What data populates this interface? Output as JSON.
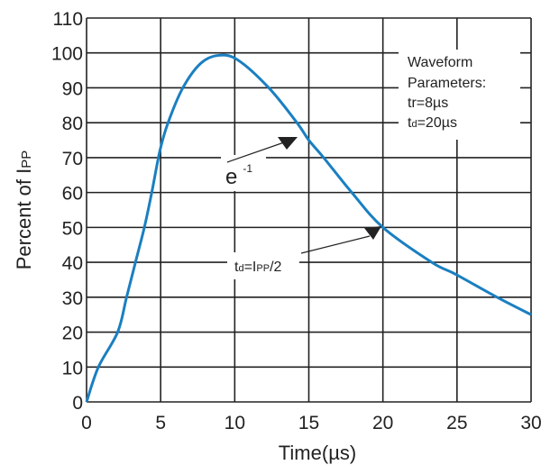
{
  "chart_data": {
    "type": "line",
    "xlabel": "Time(µs)",
    "ylabel_main": "Percent of I",
    "ylabel_sub": "PP",
    "xlim": [
      0,
      30
    ],
    "ylim": [
      0,
      110
    ],
    "xticks": [
      0,
      5,
      10,
      15,
      20,
      25,
      30
    ],
    "yticks": [
      0,
      10,
      20,
      30,
      40,
      50,
      60,
      70,
      80,
      90,
      100,
      110
    ],
    "grid": true,
    "line_color": "#1a7fc1",
    "series": [
      {
        "x": [
          0,
          0.8,
          2.1,
          2.7,
          3.3,
          3.9,
          4.4,
          4.95,
          5.5,
          6.5,
          7.7,
          8.9,
          10.2,
          12.3,
          14.2,
          15,
          16,
          17.9,
          20,
          23.3,
          24.9,
          27.7,
          30
        ],
        "y": [
          0,
          10,
          20,
          30,
          40,
          50,
          60,
          72,
          80,
          90,
          97,
          99.3,
          98,
          90,
          80,
          75,
          70,
          60,
          50,
          40,
          36.6,
          30,
          25
        ]
      }
    ],
    "annotations": {
      "e_base": "e",
      "e_exp": "-1",
      "td_label": {
        "t": "t",
        "d": "d",
        "eq": "=I",
        "pp": "PP",
        "rest": "/2"
      },
      "params": {
        "line1": "Waveform",
        "line2": "Parameters:",
        "line3": "tr=8µs",
        "line4_t": "t",
        "line4_d": "d",
        "line4_rest": "=20µs"
      }
    }
  }
}
